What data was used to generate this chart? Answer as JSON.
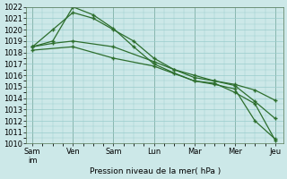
{
  "background_color": "#cce8e8",
  "grid_color": "#99cccc",
  "line_color": "#2d6e2d",
  "xlabel": "Pression niveau de la mer( hPa )",
  "ylim": [
    1010,
    1022
  ],
  "yticks": [
    1010,
    1011,
    1012,
    1013,
    1014,
    1015,
    1016,
    1017,
    1018,
    1019,
    1020,
    1021,
    1022
  ],
  "xtick_labels": [
    "Sam\nim",
    "Ven",
    "Sam",
    "Lun",
    "Mar",
    "Mer",
    "Jeu"
  ],
  "xtick_positions": [
    0,
    1,
    2,
    3,
    4,
    5,
    6
  ],
  "series": [
    {
      "x": [
        0,
        0.5,
        1.0,
        1.5,
        2.0,
        2.5,
        3.0,
        3.5,
        4.0,
        4.5,
        5.0,
        5.5,
        6.0
      ],
      "y": [
        1018.5,
        1019.0,
        1022.0,
        1021.3,
        1020.1,
        1018.5,
        1017.0,
        1016.2,
        1015.5,
        1015.2,
        1014.8,
        1012.0,
        1010.4
      ]
    },
    {
      "x": [
        0,
        0.5,
        1.0,
        1.5,
        2.0,
        2.5,
        3.0,
        3.5,
        4.0,
        4.5,
        5.0,
        5.5,
        6.0
      ],
      "y": [
        1018.5,
        1020.0,
        1021.5,
        1021.0,
        1020.0,
        1019.0,
        1017.5,
        1016.5,
        1015.8,
        1015.5,
        1015.1,
        1013.7,
        1012.2
      ]
    },
    {
      "x": [
        0,
        0.5,
        1.0,
        2.0,
        3.0,
        3.5,
        4.0,
        4.5,
        5.0,
        5.5,
        6.0
      ],
      "y": [
        1018.5,
        1018.8,
        1019.0,
        1018.5,
        1017.2,
        1016.5,
        1016.0,
        1015.5,
        1015.2,
        1014.7,
        1013.8
      ]
    },
    {
      "x": [
        0,
        1.0,
        2.0,
        3.0,
        4.0,
        4.5,
        5.0,
        5.5,
        6.0
      ],
      "y": [
        1018.2,
        1018.5,
        1017.5,
        1016.8,
        1015.5,
        1015.3,
        1014.5,
        1013.5,
        1010.3
      ]
    }
  ],
  "spine_color": "#557755",
  "tick_label_fontsize": 6,
  "xlabel_fontsize": 6.5
}
